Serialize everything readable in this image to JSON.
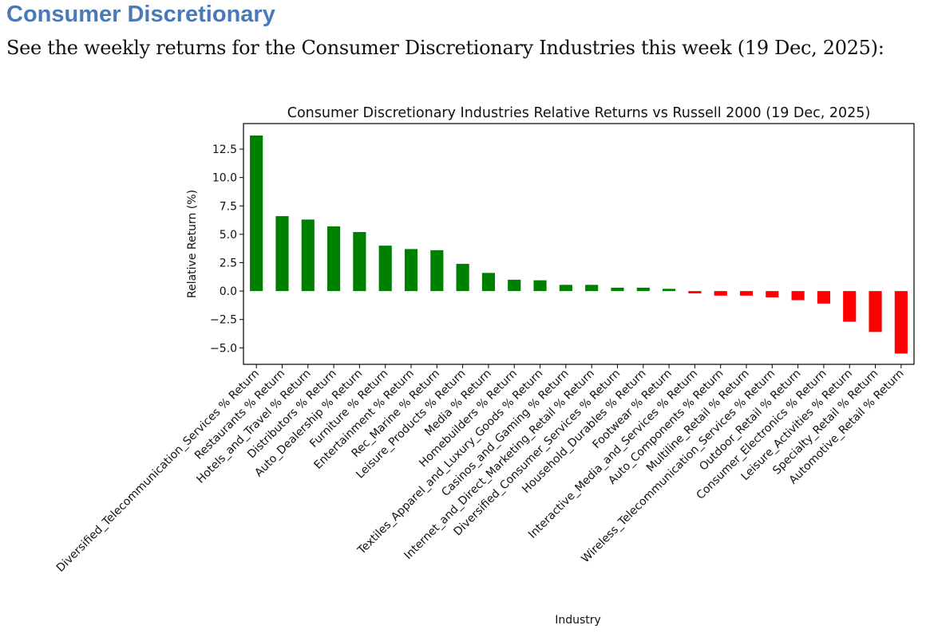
{
  "heading": "Consumer Discretionary",
  "intro": "See the weekly returns for the Consumer Discretionary Industries this week (19 Dec, 2025):",
  "chart_data": {
    "type": "bar",
    "title": "Consumer Discretionary Industries Relative Returns vs Russell 2000 (19 Dec, 2025)",
    "xlabel": "Industry",
    "ylabel": "Relative Return (%)",
    "ylim": [
      -6.45,
      14.75
    ],
    "yticks": [
      -5.0,
      -2.5,
      0.0,
      2.5,
      5.0,
      7.5,
      10.0,
      12.5
    ],
    "ytick_labels": [
      "−5.0",
      "−2.5",
      "0.0",
      "2.5",
      "5.0",
      "7.5",
      "10.0",
      "12.5"
    ],
    "positive_color": "#008000",
    "negative_color": "#ff0000",
    "categories": [
      "Diversified_Telecommunication_Services % Return",
      "Restaurants % Return",
      "Hotels_and_Travel % Return",
      "Distributors % Return",
      "Auto_Dealership % Return",
      "Furniture % Return",
      "Entertainment % Return",
      "Rec_Marine % Return",
      "Leisure_Products % Return",
      "Media % Return",
      "Homebuilders % Return",
      "Textiles_Apparel_and_Luxury_Goods % Return",
      "Casinos_and_Gaming % Return",
      "Internet_and_Direct_Marketing_Retail % Return",
      "Diversified_Consumer_Services % Return",
      "Household_Durables % Return",
      "Footwear % Return",
      "Interactive_Media_and_Services % Return",
      "Auto_Components % Return",
      "Multiline_Retail % Return",
      "Wireless_Telecommunication_Services % Return",
      "Outdoor_Retail % Return",
      "Consumer_Electronics % Return",
      "Leisure_Activities % Return",
      "Specialty_Retail % Return",
      "Automotive_Retail % Return"
    ],
    "values": [
      13.7,
      6.6,
      6.3,
      5.7,
      5.2,
      4.0,
      3.7,
      3.6,
      2.4,
      1.6,
      1.0,
      0.95,
      0.55,
      0.55,
      0.3,
      0.3,
      0.2,
      -0.2,
      -0.4,
      -0.4,
      -0.55,
      -0.8,
      -1.1,
      -2.7,
      -3.6,
      -5.5
    ]
  }
}
